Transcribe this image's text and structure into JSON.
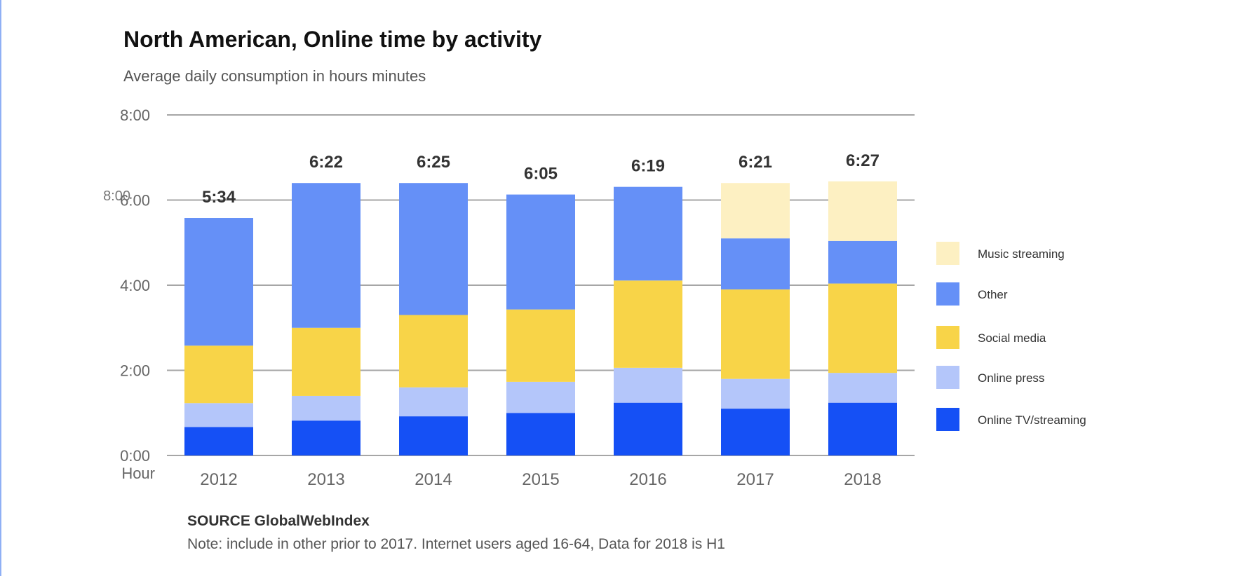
{
  "chart_data": {
    "type": "bar",
    "stacked": true,
    "title": "North American, Online time by activity",
    "subtitle": "Average daily consumption in hours minutes",
    "ylabel": "Hour",
    "ylim": [
      0,
      8
    ],
    "yticks": [
      "0:00",
      "2:00",
      "4:00",
      "6:00",
      "8:00"
    ],
    "stray_label": "8:00",
    "categories": [
      "2012",
      "2013",
      "2014",
      "2015",
      "2016",
      "2017",
      "2018"
    ],
    "totals": [
      "5:34",
      "6:22",
      "6:25",
      "6:05",
      "6:19",
      "6:21",
      "6:27"
    ],
    "series": [
      {
        "name": "Online TV/streaming",
        "color": "#1550f5",
        "values": [
          0.67,
          0.82,
          0.92,
          1.0,
          1.24,
          1.1,
          1.24
        ]
      },
      {
        "name": "Online press",
        "color": "#b4c6fa",
        "values": [
          0.56,
          0.58,
          0.68,
          0.73,
          0.82,
          0.7,
          0.7
        ]
      },
      {
        "name": "Social media",
        "color": "#f8d448",
        "values": [
          1.35,
          1.6,
          1.7,
          1.7,
          2.05,
          2.1,
          2.1
        ]
      },
      {
        "name": "Other",
        "color": "#6590f7",
        "values": [
          3.0,
          3.4,
          3.1,
          2.7,
          2.2,
          1.2,
          1.0
        ]
      },
      {
        "name": "Music streaming",
        "color": "#fdf0c2",
        "values": [
          0,
          0,
          0,
          0,
          0,
          1.3,
          1.4
        ]
      }
    ],
    "legend_position": "right",
    "grid": true
  },
  "footer": {
    "source": "SOURCE GlobalWebIndex",
    "note": "Note: include in other prior to 2017. Internet users aged 16-64, Data for 2018 is H1"
  }
}
